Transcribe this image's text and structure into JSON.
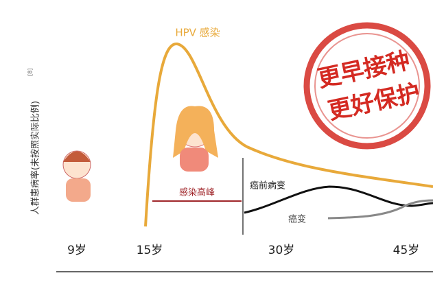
{
  "y_axis_label": "人群患病率(未按照实际比例)",
  "y_axis_note": "[8]",
  "curves": {
    "infection": "HPV 感染",
    "peak": "感染高峰",
    "precancer": "癌前病变",
    "cancer": "癌变"
  },
  "ages": [
    "9岁",
    "15岁",
    "30岁",
    "45岁"
  ],
  "stamp": [
    "更早接种",
    "更好保护"
  ]
}
